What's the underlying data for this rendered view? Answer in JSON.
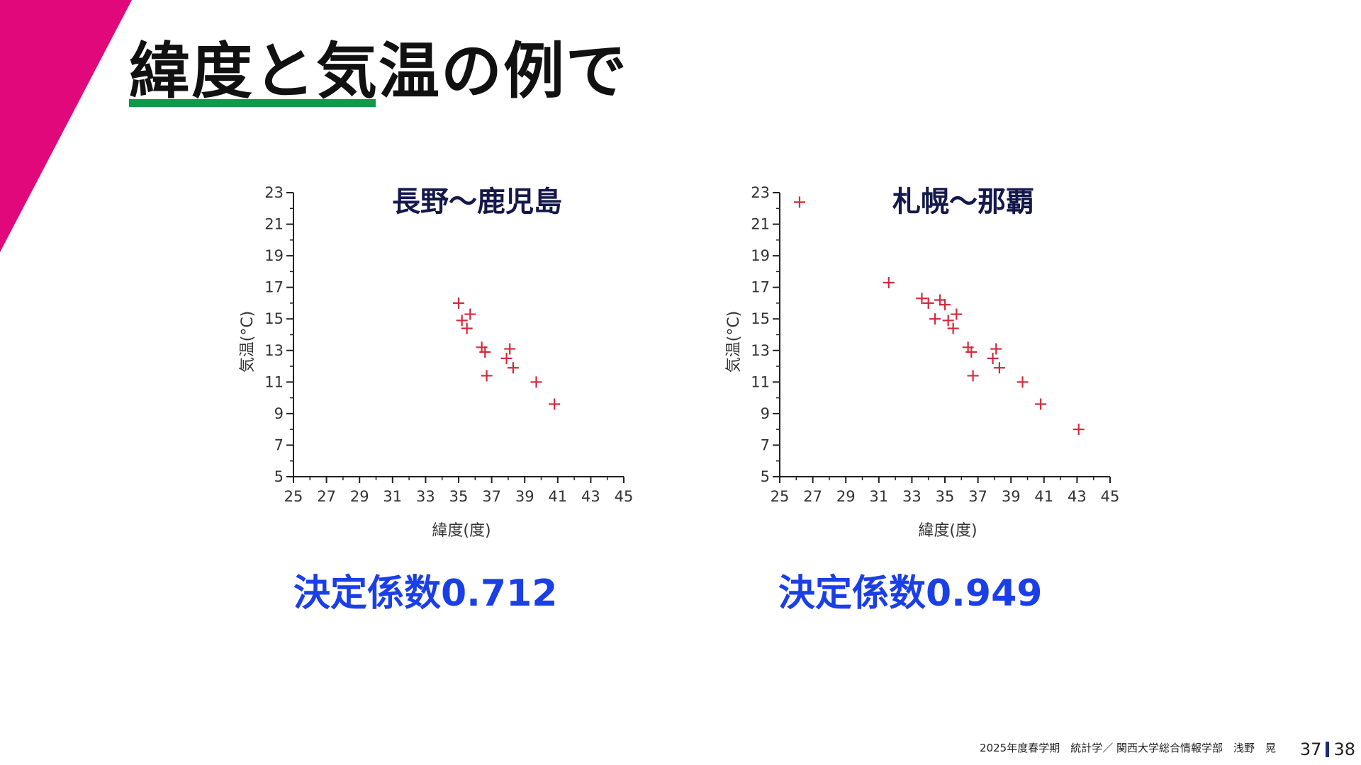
{
  "slide": {
    "title": "緯度と気温の例で",
    "accent_color": "#e0087b",
    "underline_color": "#0f9a4b"
  },
  "footer": {
    "text": "2025年度春学期　統計学／ 関西大学総合情報学部　浅野　晃",
    "page_current": "37",
    "page_total": "38"
  },
  "coefficients": {
    "left": "決定係数0.712",
    "right": "決定係数0.949"
  },
  "chart_data": [
    {
      "type": "scatter",
      "title": "長野～鹿児島",
      "xlabel": "緯度(度)",
      "ylabel": "気温(°C)",
      "xlim": [
        25,
        45
      ],
      "ylim": [
        5,
        23
      ],
      "xticks": [
        25,
        27,
        29,
        31,
        33,
        35,
        37,
        39,
        41,
        43,
        45
      ],
      "yticks": [
        5,
        7,
        9,
        11,
        13,
        15,
        17,
        19,
        21,
        23
      ],
      "grid": false,
      "marker": "+",
      "color": "#d42a3a",
      "points": [
        {
          "x": 35.0,
          "y": 16.0
        },
        {
          "x": 35.7,
          "y": 15.3
        },
        {
          "x": 35.2,
          "y": 14.9
        },
        {
          "x": 35.5,
          "y": 14.4
        },
        {
          "x": 36.4,
          "y": 13.2
        },
        {
          "x": 36.6,
          "y": 12.9
        },
        {
          "x": 36.7,
          "y": 11.4
        },
        {
          "x": 37.9,
          "y": 12.5
        },
        {
          "x": 38.1,
          "y": 13.1
        },
        {
          "x": 38.3,
          "y": 11.9
        },
        {
          "x": 39.7,
          "y": 11.0
        },
        {
          "x": 40.8,
          "y": 9.6
        }
      ]
    },
    {
      "type": "scatter",
      "title": "札幌～那覇",
      "xlabel": "緯度(度)",
      "ylabel": "気温(°C)",
      "xlim": [
        25,
        45
      ],
      "ylim": [
        5,
        23
      ],
      "xticks": [
        25,
        27,
        29,
        31,
        33,
        35,
        37,
        39,
        41,
        43,
        45
      ],
      "yticks": [
        5,
        7,
        9,
        11,
        13,
        15,
        17,
        19,
        21,
        23
      ],
      "grid": false,
      "marker": "+",
      "color": "#d42a3a",
      "points": [
        {
          "x": 26.2,
          "y": 22.4
        },
        {
          "x": 31.6,
          "y": 17.3
        },
        {
          "x": 33.6,
          "y": 16.3
        },
        {
          "x": 34.0,
          "y": 16.0
        },
        {
          "x": 34.7,
          "y": 16.2
        },
        {
          "x": 35.0,
          "y": 15.9
        },
        {
          "x": 35.7,
          "y": 15.3
        },
        {
          "x": 34.4,
          "y": 15.0
        },
        {
          "x": 35.2,
          "y": 14.9
        },
        {
          "x": 35.5,
          "y": 14.4
        },
        {
          "x": 36.4,
          "y": 13.2
        },
        {
          "x": 36.6,
          "y": 12.9
        },
        {
          "x": 36.7,
          "y": 11.4
        },
        {
          "x": 37.9,
          "y": 12.5
        },
        {
          "x": 38.1,
          "y": 13.1
        },
        {
          "x": 38.3,
          "y": 11.9
        },
        {
          "x": 39.7,
          "y": 11.0
        },
        {
          "x": 40.8,
          "y": 9.6
        },
        {
          "x": 43.1,
          "y": 8.0
        }
      ]
    }
  ]
}
